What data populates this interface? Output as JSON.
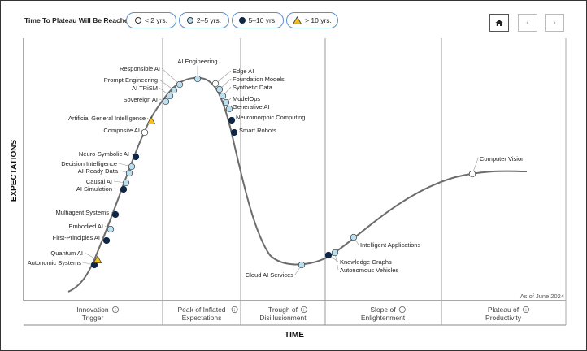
{
  "legend": {
    "title": "Time To Plateau Will Be Reached:",
    "items": [
      {
        "label": "< 2 yrs.",
        "color": "#ffffff",
        "shape": "circle"
      },
      {
        "label": "2–5 yrs.",
        "color": "#b9dff0",
        "shape": "circle"
      },
      {
        "label": "5–10 yrs.",
        "color": "#0f2747",
        "shape": "circle"
      },
      {
        "label": "> 10 yrs.",
        "color": "#f3c318",
        "shape": "triangle"
      }
    ]
  },
  "nav": {
    "home_icon": "home-icon",
    "prev_icon": "chevron-left-icon",
    "next_icon": "chevron-right-icon"
  },
  "chart_data": {
    "type": "scatter",
    "xlabel": "TIME",
    "ylabel": "EXPECTATIONS",
    "note": "As of June 2024",
    "phases": [
      [
        "Innovation",
        "Trigger"
      ],
      [
        "Peak of Inflated",
        "Expectations"
      ],
      [
        "Trough of",
        "Disillusionment"
      ],
      [
        "Slope of",
        "Enlightenment"
      ],
      [
        "Plateau of",
        "Productivity"
      ]
    ],
    "categories": [
      "< 2 yrs.",
      "2–5 yrs.",
      "5–10 yrs.",
      "> 10 yrs."
    ],
    "points": [
      {
        "name": "Autonomic Systems",
        "category": "5–10 yrs."
      },
      {
        "name": "Quantum AI",
        "category": "> 10 yrs."
      },
      {
        "name": "First-Principles AI",
        "category": "5–10 yrs."
      },
      {
        "name": "Embodied AI",
        "category": "2–5 yrs."
      },
      {
        "name": "Multiagent Systems",
        "category": "5–10 yrs."
      },
      {
        "name": "AI Simulation",
        "category": "5–10 yrs."
      },
      {
        "name": "Causal AI",
        "category": "2–5 yrs."
      },
      {
        "name": "AI-Ready Data",
        "category": "2–5 yrs."
      },
      {
        "name": "Decision Intelligence",
        "category": "2–5 yrs."
      },
      {
        "name": "Neuro-Symbolic AI",
        "category": "5–10 yrs."
      },
      {
        "name": "Composite AI",
        "category": "< 2 yrs."
      },
      {
        "name": "Artificial General Intelligence",
        "category": "> 10 yrs."
      },
      {
        "name": "Sovereign AI",
        "category": "2–5 yrs."
      },
      {
        "name": "AI TRiSM",
        "category": "2–5 yrs."
      },
      {
        "name": "Prompt Engineering",
        "category": "2–5 yrs."
      },
      {
        "name": "Responsible AI",
        "category": "2–5 yrs."
      },
      {
        "name": "AI Engineering",
        "category": "2–5 yrs."
      },
      {
        "name": "Edge AI",
        "category": "< 2 yrs."
      },
      {
        "name": "Foundation Models",
        "category": "2–5 yrs."
      },
      {
        "name": "Synthetic Data",
        "category": "2–5 yrs."
      },
      {
        "name": "ModelOps",
        "category": "2–5 yrs."
      },
      {
        "name": "Generative AI",
        "category": "2–5 yrs."
      },
      {
        "name": "Neuromorphic Computing",
        "category": "5–10 yrs."
      },
      {
        "name": "Smart Robots",
        "category": "5–10 yrs."
      },
      {
        "name": "Cloud AI Services",
        "category": "2–5 yrs."
      },
      {
        "name": "Knowledge Graphs",
        "category": "5–10 yrs."
      },
      {
        "name": "Autonomous Vehicles",
        "category": "2–5 yrs."
      },
      {
        "name": "Intelligent Applications",
        "category": "2–5 yrs."
      },
      {
        "name": "Computer Vision",
        "category": "< 2 yrs."
      }
    ]
  }
}
